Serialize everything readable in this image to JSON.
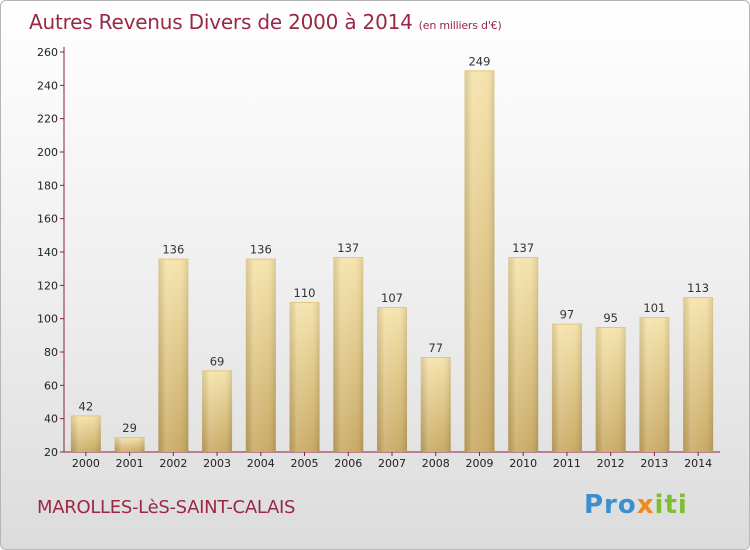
{
  "header": {
    "title": "Autres Revenus Divers de 2000 à 2014",
    "unit": "(en milliers d'€)"
  },
  "footer": {
    "city": "MAROLLES-LèS-SAINT-CALAIS",
    "logo": {
      "p1": "Pro",
      "p2": "x",
      "p3": "iti"
    }
  },
  "colors": {
    "accent": "#9b2747",
    "bar_light": "#f5e2a8",
    "bar_dark": "#c6a65e",
    "logo_blue": "#3a8fd0",
    "logo_orange": "#f08a1a",
    "logo_green": "#7bbf2f"
  },
  "chart_data": {
    "type": "bar",
    "categories": [
      "2000",
      "2001",
      "2002",
      "2003",
      "2004",
      "2005",
      "2006",
      "2007",
      "2008",
      "2009",
      "2010",
      "2011",
      "2012",
      "2013",
      "2014"
    ],
    "values": [
      42,
      29,
      136,
      69,
      136,
      110,
      137,
      107,
      77,
      249,
      137,
      97,
      95,
      101,
      113
    ],
    "ylim": [
      20,
      260
    ],
    "yticks": [
      20,
      40,
      60,
      80,
      100,
      120,
      140,
      160,
      180,
      200,
      220,
      240,
      260
    ],
    "grid": false,
    "data_labels": true
  }
}
